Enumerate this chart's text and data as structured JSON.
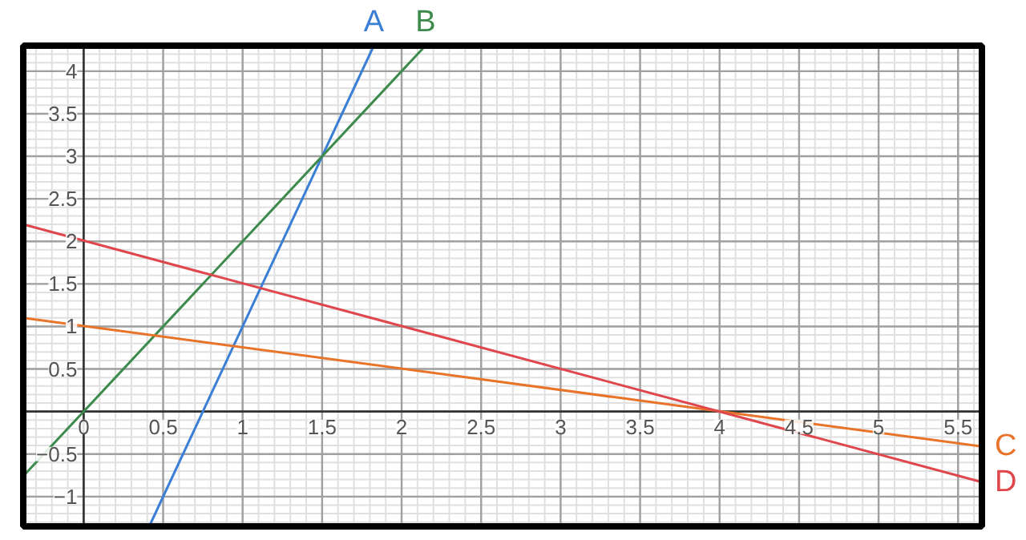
{
  "chart_data": {
    "type": "line",
    "xlim": [
      -0.38,
      5.65
    ],
    "ylim": [
      -1.35,
      4.3
    ],
    "xticks": [
      {
        "value": 0,
        "label": "0"
      },
      0.5,
      1,
      1.5,
      2,
      2.5,
      3,
      3.5,
      4,
      4.5,
      5,
      5.5
    ],
    "yticks": [
      {
        "value": -1,
        "label": "−1"
      },
      {
        "value": -0.5,
        "label": "−0.5"
      },
      {
        "value": 0,
        "label": null
      },
      0.5,
      1,
      1.5,
      2,
      2.5,
      3,
      3.5,
      4
    ],
    "grid": true,
    "series": [
      {
        "name": "A",
        "color": "#3a7fd5",
        "x": [
          0.4125,
          1.825
        ],
        "values": [
          -1.35,
          4.3
        ]
      },
      {
        "name": "B",
        "color": "#3c8a4c",
        "x": [
          -0.38,
          2.15
        ],
        "values": [
          -0.76,
          4.3
        ]
      },
      {
        "name": "C",
        "color": "#e8742a",
        "x": [
          -0.38,
          5.65
        ],
        "values": [
          1.1,
          -0.41
        ]
      },
      {
        "name": "D",
        "color": "#e0474c",
        "x": [
          -0.38,
          5.65
        ],
        "values": [
          2.2,
          -0.83
        ]
      }
    ]
  }
}
